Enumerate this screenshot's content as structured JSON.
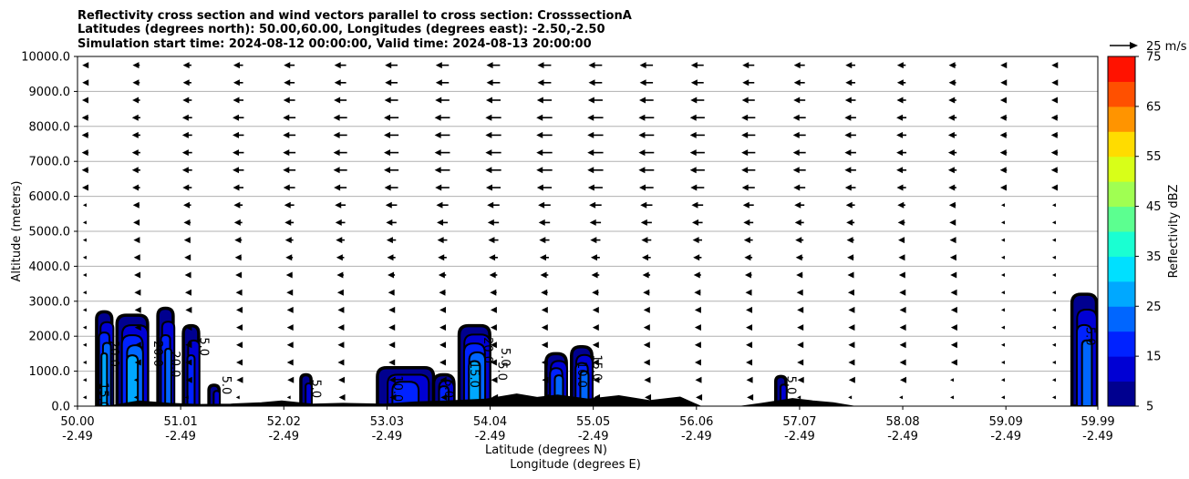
{
  "chart_data": {
    "type": "heatmap",
    "title_lines": [
      "Reflectivity cross section and wind vectors parallel to cross section: CrosssectionA",
      "Latitudes (degrees north): 50.00,60.00, Longitudes (degrees east): -2.50,-2.50",
      "Simulation start time: 2024-08-12 00:00:00, Valid time: 2024-08-13 20:00:00"
    ],
    "ylabel": "Altitude (meters)",
    "xlabel_lines": [
      "Latitude (degrees N)",
      "Longitude (degrees E)"
    ],
    "ylim": [
      0,
      10000
    ],
    "xlim": [
      50.0,
      59.99
    ],
    "y_ticks": [
      "0.0",
      "1000.0",
      "2000.0",
      "3000.0",
      "4000.0",
      "5000.0",
      "6000.0",
      "7000.0",
      "8000.0",
      "9000.0",
      "10000.0"
    ],
    "x_ticks": [
      {
        "lat": "50.00",
        "lon": "-2.49"
      },
      {
        "lat": "51.01",
        "lon": "-2.49"
      },
      {
        "lat": "52.02",
        "lon": "-2.49"
      },
      {
        "lat": "53.03",
        "lon": "-2.49"
      },
      {
        "lat": "54.04",
        "lon": "-2.49"
      },
      {
        "lat": "55.05",
        "lon": "-2.49"
      },
      {
        "lat": "56.06",
        "lon": "-2.49"
      },
      {
        "lat": "57.07",
        "lon": "-2.49"
      },
      {
        "lat": "58.08",
        "lon": "-2.49"
      },
      {
        "lat": "59.09",
        "lon": "-2.49"
      },
      {
        "lat": "59.99",
        "lon": "-2.49"
      }
    ],
    "grid": "horizontal",
    "colorbar": {
      "label": "Reflectivity dBZ",
      "levels": [
        5,
        10,
        15,
        20,
        25,
        30,
        35,
        40,
        45,
        50,
        55,
        60,
        65,
        70,
        75
      ],
      "tick_labels": [
        "5",
        "15",
        "25",
        "35",
        "45",
        "55",
        "65",
        "75"
      ],
      "colors": [
        "#00008f",
        "#0000d4",
        "#0022ff",
        "#0066ff",
        "#00a8ff",
        "#00e0ff",
        "#1affd2",
        "#5cff90",
        "#a0ff52",
        "#d8ff18",
        "#ffdc00",
        "#ff9400",
        "#ff5000",
        "#ff1200",
        "#a80000"
      ]
    },
    "quiver_key": {
      "label": "25 m/s",
      "speed": 25
    },
    "wind_speed_by_altitude": [
      {
        "alt": 250,
        "speed": 3
      },
      {
        "alt": 750,
        "speed": 4
      },
      {
        "alt": 1250,
        "speed": 5
      },
      {
        "alt": 1750,
        "speed": 5
      },
      {
        "alt": 2250,
        "speed": 5
      },
      {
        "alt": 2750,
        "speed": 5
      },
      {
        "alt": 3250,
        "speed": 6
      },
      {
        "alt": 3750,
        "speed": 7
      },
      {
        "alt": 4250,
        "speed": 8
      },
      {
        "alt": 4750,
        "speed": 9
      },
      {
        "alt": 5250,
        "speed": 10
      },
      {
        "alt": 5750,
        "speed": 11
      },
      {
        "alt": 6250,
        "speed": 13
      },
      {
        "alt": 6750,
        "speed": 14
      },
      {
        "alt": 7250,
        "speed": 14
      },
      {
        "alt": 7750,
        "speed": 14
      },
      {
        "alt": 8250,
        "speed": 14
      },
      {
        "alt": 8750,
        "speed": 13
      },
      {
        "alt": 9250,
        "speed": 12
      },
      {
        "alt": 9750,
        "speed": 12
      }
    ],
    "terrain": [
      [
        50.0,
        0
      ],
      [
        50.3,
        0
      ],
      [
        50.6,
        150
      ],
      [
        50.9,
        80
      ],
      [
        51.2,
        50
      ],
      [
        51.5,
        60
      ],
      [
        51.8,
        100
      ],
      [
        52.0,
        150
      ],
      [
        52.3,
        60
      ],
      [
        52.6,
        80
      ],
      [
        53.0,
        60
      ],
      [
        53.3,
        120
      ],
      [
        53.6,
        150
      ],
      [
        54.0,
        200
      ],
      [
        54.3,
        350
      ],
      [
        54.5,
        250
      ],
      [
        54.7,
        320
      ],
      [
        55.0,
        200
      ],
      [
        55.3,
        300
      ],
      [
        55.6,
        160
      ],
      [
        55.9,
        260
      ],
      [
        56.1,
        0
      ],
      [
        56.5,
        0
      ],
      [
        56.7,
        80
      ],
      [
        57.0,
        220
      ],
      [
        57.2,
        150
      ],
      [
        57.4,
        100
      ],
      [
        57.6,
        0
      ],
      [
        59.99,
        0
      ]
    ],
    "reflectivity_cells": [
      {
        "x0": 50.2,
        "x1": 50.35,
        "top": 2700,
        "max_dbz": 25
      },
      {
        "x0": 50.4,
        "x1": 50.7,
        "top": 2600,
        "max_dbz": 25
      },
      {
        "x0": 50.8,
        "x1": 50.95,
        "top": 2800,
        "max_dbz": 20
      },
      {
        "x0": 51.05,
        "x1": 51.2,
        "top": 2300,
        "max_dbz": 15
      },
      {
        "x0": 51.3,
        "x1": 51.4,
        "top": 600,
        "max_dbz": 10
      },
      {
        "x0": 52.2,
        "x1": 52.3,
        "top": 900,
        "max_dbz": 10
      },
      {
        "x0": 52.95,
        "x1": 53.5,
        "top": 1100,
        "max_dbz": 15
      },
      {
        "x0": 53.5,
        "x1": 53.7,
        "top": 900,
        "max_dbz": 15
      },
      {
        "x0": 53.75,
        "x1": 54.05,
        "top": 2300,
        "max_dbz": 25
      },
      {
        "x0": 54.6,
        "x1": 54.8,
        "top": 1500,
        "max_dbz": 20
      },
      {
        "x0": 54.85,
        "x1": 55.05,
        "top": 1700,
        "max_dbz": 20
      },
      {
        "x0": 56.85,
        "x1": 56.95,
        "top": 850,
        "max_dbz": 10
      },
      {
        "x0": 59.75,
        "x1": 59.99,
        "top": 3200,
        "max_dbz": 20
      }
    ],
    "contour_labels": [
      {
        "x": 50.22,
        "y": 300,
        "text": "15.0"
      },
      {
        "x": 50.32,
        "y": 1500,
        "text": "20.0"
      },
      {
        "x": 50.75,
        "y": 1500,
        "text": "20.0"
      },
      {
        "x": 50.92,
        "y": 1200,
        "text": "20.0"
      },
      {
        "x": 51.2,
        "y": 1700,
        "text": "5.0"
      },
      {
        "x": 51.42,
        "y": 600,
        "text": "5.0"
      },
      {
        "x": 52.3,
        "y": 500,
        "text": "5.0"
      },
      {
        "x": 53.1,
        "y": 500,
        "text": "10.0"
      },
      {
        "x": 53.6,
        "y": 500,
        "text": "5.0"
      },
      {
        "x": 53.85,
        "y": 900,
        "text": "15.0"
      },
      {
        "x": 53.98,
        "y": 1600,
        "text": "20.0"
      },
      {
        "x": 54.15,
        "y": 1400,
        "text": "5.0"
      },
      {
        "x": 54.12,
        "y": 1000,
        "text": "5.0"
      },
      {
        "x": 54.9,
        "y": 900,
        "text": "10.0"
      },
      {
        "x": 55.05,
        "y": 1100,
        "text": "15.0"
      },
      {
        "x": 56.95,
        "y": 600,
        "text": "5.0"
      },
      {
        "x": 59.88,
        "y": 2000,
        "text": "5.0"
      }
    ]
  }
}
